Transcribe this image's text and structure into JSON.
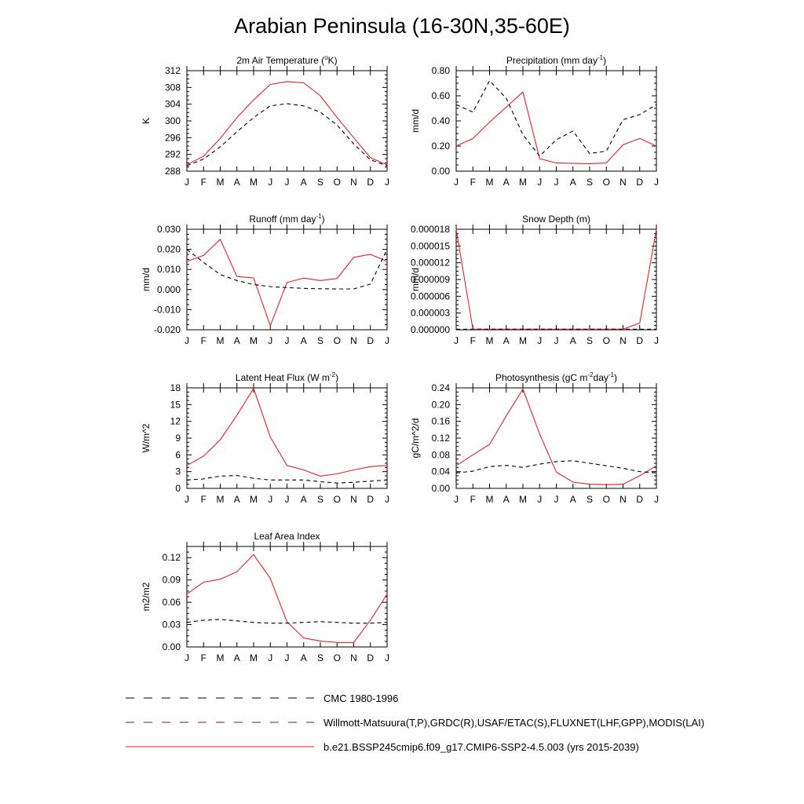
{
  "title": "Arabian Peninsula (16-30N,35-60E)",
  "colors": {
    "model": "#e8212a",
    "obs": "#000000",
    "obs_alt": "#8a0a4a"
  },
  "legend": [
    {
      "label": "CMC 1980-1996",
      "style": "dash-black"
    },
    {
      "label": "Willmott-Matsuura(T,P),GRDC(R),USAF/ETAC(S),FLUXNET(LHF,GPP),MODIS(LAI)",
      "style": "dash-purple"
    },
    {
      "label": "b.e21.BSSP245cmip6.f09_g17.CMIP6-SSP2-4.5.003 (yrs 2015-2039)",
      "style": "solid-red"
    }
  ],
  "chart_data": [
    {
      "id": "temp",
      "type": "line",
      "title": "2m Air Temperature (",
      "title_sup": "o",
      "title_after": "K)",
      "ylabel": "K",
      "categories": [
        "J",
        "F",
        "M",
        "A",
        "M",
        "J",
        "J",
        "A",
        "S",
        "O",
        "N",
        "D",
        "J"
      ],
      "ylim": [
        288,
        312
      ],
      "yticks": [
        288,
        292,
        296,
        300,
        304,
        308,
        312
      ],
      "yticklabels": [
        "288",
        "292",
        "296",
        "300",
        "304",
        "308",
        "312"
      ],
      "series": [
        {
          "name": "model",
          "style": "solid",
          "values": [
            289.5,
            291.6,
            295.8,
            300.8,
            305.0,
            308.7,
            309.4,
            309.1,
            306.0,
            300.8,
            296.0,
            291.2,
            289.5
          ]
        },
        {
          "name": "obs",
          "style": "dash",
          "values": [
            289.3,
            290.9,
            293.8,
            297.4,
            300.8,
            303.6,
            304.1,
            303.6,
            302.1,
            299.0,
            294.5,
            290.7,
            289.3
          ]
        }
      ]
    },
    {
      "id": "precip",
      "type": "line",
      "title": "Precipitation (mm day",
      "title_sup": "-1",
      "title_after": ")",
      "ylabel": "mm/d",
      "categories": [
        "J",
        "F",
        "M",
        "A",
        "M",
        "J",
        "J",
        "A",
        "S",
        "O",
        "N",
        "D",
        "J"
      ],
      "ylim": [
        0,
        0.8
      ],
      "yticks": [
        0,
        0.2,
        0.4,
        0.6,
        0.8
      ],
      "yticklabels": [
        "0.00",
        "0.20",
        "0.40",
        "0.60",
        "0.80"
      ],
      "series": [
        {
          "name": "model",
          "style": "solid",
          "values": [
            0.2,
            0.26,
            0.39,
            0.51,
            0.63,
            0.1,
            0.065,
            0.062,
            0.06,
            0.065,
            0.21,
            0.26,
            0.2
          ]
        },
        {
          "name": "obs",
          "style": "dash",
          "values": [
            0.53,
            0.47,
            0.72,
            0.58,
            0.29,
            0.12,
            0.25,
            0.32,
            0.14,
            0.16,
            0.41,
            0.45,
            0.53
          ]
        }
      ]
    },
    {
      "id": "runoff",
      "type": "line",
      "title": "Runoff (mm day",
      "title_sup": "-1",
      "title_after": ")",
      "ylabel": "mm/d",
      "categories": [
        "J",
        "F",
        "M",
        "A",
        "M",
        "J",
        "J",
        "A",
        "S",
        "O",
        "N",
        "D",
        "J"
      ],
      "ylim": [
        -0.02,
        0.03
      ],
      "yticks": [
        -0.02,
        -0.01,
        0,
        0.01,
        0.02,
        0.03
      ],
      "yticklabels": [
        "-0.020",
        "-0.010",
        "0.000",
        "0.010",
        "0.020",
        "0.030"
      ],
      "series": [
        {
          "name": "model",
          "style": "solid",
          "values": [
            0.014,
            0.017,
            0.025,
            0.0065,
            0.0058,
            -0.018,
            0.0035,
            0.0057,
            0.0045,
            0.0055,
            0.016,
            0.0175,
            0.014
          ]
        },
        {
          "name": "obs",
          "style": "dash",
          "values": [
            0.02,
            0.0135,
            0.0075,
            0.0045,
            0.0025,
            0.0015,
            0.001,
            0.0006,
            0.0004,
            0.0003,
            0.0003,
            0.0027,
            0.02
          ]
        }
      ]
    },
    {
      "id": "snow",
      "type": "line",
      "title": "Snow Depth (m)",
      "title_sup": "",
      "title_after": "",
      "ylabel": "mm/d",
      "categories": [
        "J",
        "F",
        "M",
        "A",
        "M",
        "J",
        "J",
        "A",
        "S",
        "O",
        "N",
        "D",
        "J"
      ],
      "ylim": [
        0,
        1.8e-05
      ],
      "yticks": [
        0,
        3e-06,
        6e-06,
        9e-06,
        1.2e-05,
        1.5e-05,
        1.8e-05
      ],
      "yticklabels": [
        "0.000000",
        "0.000003",
        "0.000006",
        "0.000009",
        "0.000012",
        "0.000015",
        "0.000018"
      ],
      "series": [
        {
          "name": "model",
          "style": "solid",
          "values": [
            1.8e-05,
            1e-07,
            1e-07,
            1e-07,
            1e-07,
            1e-07,
            1e-07,
            1e-07,
            1e-07,
            1e-07,
            1e-07,
            1.2e-06,
            1.8e-05
          ]
        },
        {
          "name": "obs",
          "style": "dash",
          "values": [
            1e-07,
            1e-07,
            1e-07,
            1e-07,
            1e-07,
            1e-07,
            1e-07,
            1e-07,
            1e-07,
            1e-07,
            1e-07,
            1e-07,
            1e-07
          ]
        }
      ]
    },
    {
      "id": "lhf",
      "type": "line",
      "title": "Latent Heat Flux (W m",
      "title_sup": "-2",
      "title_after": ")",
      "ylabel": "W/m^2",
      "categories": [
        "J",
        "F",
        "M",
        "A",
        "M",
        "J",
        "J",
        "A",
        "S",
        "O",
        "N",
        "D",
        "J"
      ],
      "ylim": [
        0,
        18
      ],
      "yticks": [
        0,
        3,
        6,
        9,
        12,
        15,
        18
      ],
      "yticklabels": [
        "0",
        "3",
        "6",
        "9",
        "12",
        "15",
        "18"
      ],
      "series": [
        {
          "name": "model",
          "style": "solid",
          "values": [
            4.1,
            5.8,
            8.7,
            13.1,
            17.9,
            9.2,
            4.1,
            3.3,
            2.2,
            2.6,
            3.3,
            3.9,
            4.1
          ]
        },
        {
          "name": "obs",
          "style": "dash",
          "values": [
            1.5,
            1.7,
            2.2,
            2.3,
            1.8,
            1.5,
            1.5,
            1.5,
            1.2,
            0.95,
            1.1,
            1.3,
            1.5
          ]
        }
      ]
    },
    {
      "id": "gpp",
      "type": "line",
      "title": "Photosynthesis (gC m",
      "title_sup": "-2",
      "title_mid": "day",
      "title_sup2": "-1",
      "title_after": ")",
      "ylabel": "gC/m^2/d",
      "categories": [
        "J",
        "F",
        "M",
        "A",
        "M",
        "J",
        "J",
        "A",
        "S",
        "O",
        "N",
        "D",
        "J"
      ],
      "ylim": [
        0,
        0.24
      ],
      "yticks": [
        0,
        0.04,
        0.08,
        0.12,
        0.16,
        0.2,
        0.24
      ],
      "yticklabels": [
        "0.00",
        "0.04",
        "0.08",
        "0.12",
        "0.16",
        "0.20",
        "0.24"
      ],
      "series": [
        {
          "name": "model",
          "style": "solid",
          "values": [
            0.054,
            0.08,
            0.105,
            0.173,
            0.237,
            0.13,
            0.039,
            0.015,
            0.01,
            0.009,
            0.01,
            0.03,
            0.054
          ]
        },
        {
          "name": "obs",
          "style": "dash",
          "values": [
            0.037,
            0.041,
            0.052,
            0.055,
            0.05,
            0.058,
            0.064,
            0.066,
            0.06,
            0.054,
            0.048,
            0.04,
            0.037
          ]
        }
      ]
    },
    {
      "id": "lai",
      "type": "line",
      "title": "Leaf Area Index",
      "title_sup": "",
      "title_after": "",
      "ylabel": "m2/m2",
      "categories": [
        "J",
        "F",
        "M",
        "A",
        "M",
        "J",
        "J",
        "A",
        "S",
        "O",
        "N",
        "D",
        "J"
      ],
      "ylim": [
        0,
        0.135
      ],
      "yticks": [
        0,
        0.03,
        0.06,
        0.09,
        0.12
      ],
      "yticklabels": [
        "0.00",
        "0.03",
        "0.06",
        "0.09",
        "0.12"
      ],
      "series": [
        {
          "name": "model",
          "style": "solid",
          "values": [
            0.071,
            0.087,
            0.091,
            0.101,
            0.124,
            0.092,
            0.034,
            0.012,
            0.008,
            0.006,
            0.006,
            0.036,
            0.071
          ]
        },
        {
          "name": "obs",
          "style": "dash",
          "values": [
            0.033,
            0.036,
            0.037,
            0.035,
            0.033,
            0.032,
            0.032,
            0.033,
            0.034,
            0.033,
            0.032,
            0.032,
            0.033
          ]
        }
      ]
    }
  ]
}
